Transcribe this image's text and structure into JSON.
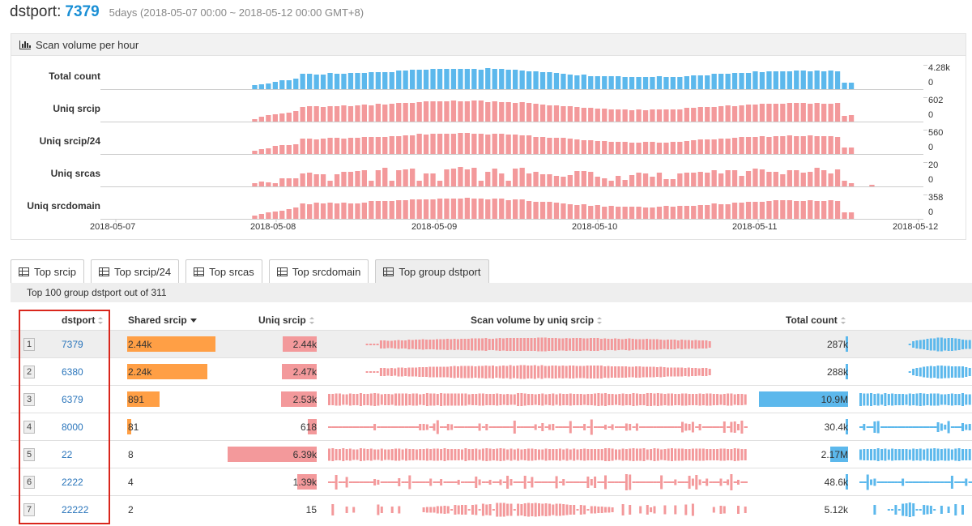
{
  "header": {
    "label": "dstport:",
    "port": "7379",
    "range": "5days (2018-05-07 00:00 ~ 2018-05-12 00:00 GMT+8)"
  },
  "scan_panel": {
    "title": "Scan volume per hour",
    "title_icon": "bar-chart-icon",
    "rows": [
      {
        "label": "Total count",
        "max": "4.28k",
        "min": "0",
        "color": "#5cb8ec"
      },
      {
        "label": "Uniq srcip",
        "max": "602",
        "min": "0",
        "color": "#f3999b"
      },
      {
        "label": "Uniq srcip/24",
        "max": "560",
        "min": "0",
        "color": "#f3999b"
      },
      {
        "label": "Uniq srcas",
        "max": "20",
        "min": "0",
        "color": "#f3999b"
      },
      {
        "label": "Uniq srcdomain",
        "max": "358",
        "min": "0",
        "color": "#f3999b"
      }
    ],
    "dates": [
      "2018-05-07",
      "2018-05-08",
      "2018-05-09",
      "2018-05-10",
      "2018-05-11",
      "2018-05-12"
    ]
  },
  "tabs": [
    {
      "label": "Top srcip",
      "icon": "table-icon",
      "active": false
    },
    {
      "label": "Top srcip/24",
      "icon": "table-icon",
      "active": false
    },
    {
      "label": "Top srcas",
      "icon": "table-icon",
      "active": false
    },
    {
      "label": "Top srcdomain",
      "icon": "table-icon",
      "active": false
    },
    {
      "label": "Top group dstport",
      "icon": "table-icon",
      "active": true
    }
  ],
  "subtitle": "Top 100 group dstport out of 311",
  "table": {
    "columns": {
      "dstport": "dstport",
      "shared": "Shared srcip",
      "uniq": "Uniq srcip",
      "volume": "Scan volume by uniq srcip",
      "total": "Total count"
    },
    "colors": {
      "shared": "#ff9f45",
      "uniq": "#f3999b",
      "total": "#5cb8ec"
    },
    "rows": [
      {
        "idx": "1",
        "dstport": "7379",
        "shared": "2.44k",
        "shared_frac": 0.46,
        "uniq": "2.44k",
        "uniq_frac": 0.38,
        "total": "287k",
        "total_frac": 0.026,
        "pattern": "ramp",
        "highlight": true
      },
      {
        "idx": "2",
        "dstport": "6380",
        "shared": "2.24k",
        "shared_frac": 0.42,
        "uniq": "2.47k",
        "uniq_frac": 0.39,
        "total": "288k",
        "total_frac": 0.026,
        "pattern": "ramp",
        "highlight": false
      },
      {
        "idx": "3",
        "dstport": "6379",
        "shared": "891",
        "shared_frac": 0.17,
        "uniq": "2.53k",
        "uniq_frac": 0.4,
        "total": "10.9M",
        "total_frac": 1.0,
        "pattern": "full",
        "highlight": false
      },
      {
        "idx": "4",
        "dstport": "8000",
        "shared": "81",
        "shared_frac": 0.02,
        "uniq": "618",
        "uniq_frac": 0.1,
        "total": "30.4k",
        "total_frac": 0.003,
        "pattern": "noisy",
        "highlight": false
      },
      {
        "idx": "5",
        "dstport": "22",
        "shared": "8",
        "shared_frac": 0.0,
        "uniq": "6.39k",
        "uniq_frac": 1.0,
        "total": "2.17M",
        "total_frac": 0.2,
        "pattern": "full",
        "highlight": false
      },
      {
        "idx": "6",
        "dstport": "2222",
        "shared": "4",
        "shared_frac": 0.0,
        "uniq": "1.39k",
        "uniq_frac": 0.22,
        "total": "48.6k",
        "total_frac": 0.004,
        "pattern": "noisy",
        "highlight": false
      },
      {
        "idx": "7",
        "dstport": "22222",
        "shared": "2",
        "shared_frac": 0.0,
        "uniq": "15",
        "uniq_frac": 0.0,
        "total": "5.12k",
        "total_frac": 0.0,
        "pattern": "sparse",
        "highlight": false
      }
    ]
  }
}
